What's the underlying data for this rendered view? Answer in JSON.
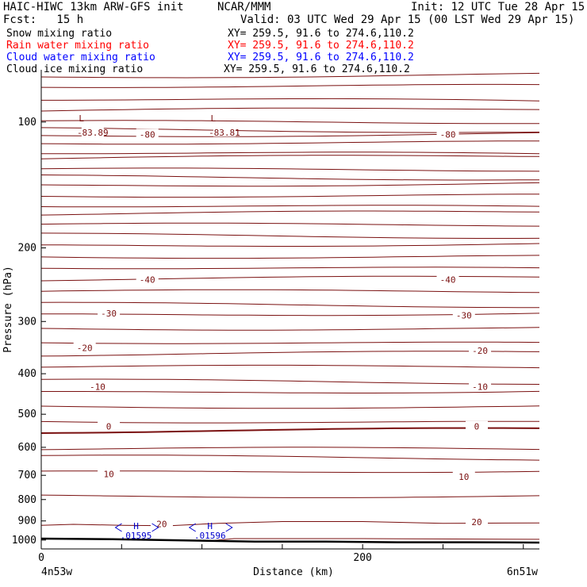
{
  "header": {
    "model": "HAIC-HIWC 13km ARW-GFS init",
    "org": "NCAR/MMM",
    "init": "Init: 12 UTC Tue 28 Apr 15",
    "fcst": "Fcst:   15 h",
    "valid": "Valid: 03 UTC Wed 29 Apr 15 (00 LST Wed 29 Apr 15)"
  },
  "fields": [
    {
      "name": "Snow mixing ratio",
      "xy": "XY= 259.5, 91.6 to 274.6,110.2",
      "color": "#000000"
    },
    {
      "name": "Rain water mixing ratio",
      "xy": "XY= 259.5, 91.6 to 274.6,110.2",
      "color": "#ff0000"
    },
    {
      "name": "Cloud water mixing ratio",
      "xy": "XY= 259.5, 91.6 to 274.6,110.2",
      "color": "#0000ff"
    },
    {
      "name": "Cloud ice mixing ratio",
      "xy": "XY= 259.5, 91.6 to 274.6,110.2",
      "color": "#000000"
    }
  ],
  "axes": {
    "ylabel": "Pressure (hPa)",
    "xlabel": "Distance (km)",
    "left_point": "4n53w",
    "right_point": "6n51w"
  },
  "chart_data": {
    "type": "cross-section",
    "y_scale": "log",
    "y_ticks": [
      100,
      200,
      300,
      400,
      500,
      600,
      700,
      800,
      900,
      1000
    ],
    "x_ticks": [
      0,
      200
    ],
    "xlim": [
      0,
      310
    ],
    "ylim": [
      1050,
      75
    ],
    "contour_color": "#7a1010",
    "marker_color": "#0000cc",
    "contour_labels": [
      {
        "text": "-83.89",
        "x": 32,
        "p": 106
      },
      {
        "text": "-83.81",
        "x": 114,
        "p": 106
      },
      {
        "text": "-80",
        "x": 66,
        "p": 107
      },
      {
        "text": "-80",
        "x": 253,
        "p": 107
      },
      {
        "text": "-40",
        "x": 66,
        "p": 238
      },
      {
        "text": "-40",
        "x": 253,
        "p": 238
      },
      {
        "text": "-30",
        "x": 42,
        "p": 287
      },
      {
        "text": "-30",
        "x": 263,
        "p": 290
      },
      {
        "text": "-20",
        "x": 27,
        "p": 347
      },
      {
        "text": "-20",
        "x": 273,
        "p": 352
      },
      {
        "text": "-10",
        "x": 35,
        "p": 430
      },
      {
        "text": "-10",
        "x": 273,
        "p": 430
      },
      {
        "text": "0",
        "x": 42,
        "p": 535
      },
      {
        "text": "0",
        "x": 271,
        "p": 535
      },
      {
        "text": "10",
        "x": 42,
        "p": 695
      },
      {
        "text": "10",
        "x": 263,
        "p": 705
      },
      {
        "text": "20",
        "x": 75,
        "p": 914
      },
      {
        "text": "20",
        "x": 271,
        "p": 905
      }
    ],
    "low_markers": [
      {
        "text": "L",
        "x": 25,
        "p": 98
      },
      {
        "text": "L",
        "x": 107,
        "p": 98
      }
    ],
    "high_markers": [
      {
        "text": "H",
        "value": ".01595",
        "x": 59,
        "p": 925
      },
      {
        "text": "H",
        "value": ".01596",
        "x": 105,
        "p": 925
      }
    ],
    "contour_levels_p": [
      78,
      82,
      88,
      94,
      100,
      104,
      108,
      112,
      118,
      122,
      130,
      135,
      142,
      150,
      158,
      166,
      176,
      186,
      198,
      210,
      222,
      238,
      254,
      272,
      290,
      312,
      335,
      360,
      385,
      415,
      445,
      480,
      518,
      550,
      605,
      630,
      690,
      785
    ],
    "surface_p": [
      992,
      995,
      1002,
      1008,
      1008,
      1012,
      1012,
      1014
    ]
  }
}
